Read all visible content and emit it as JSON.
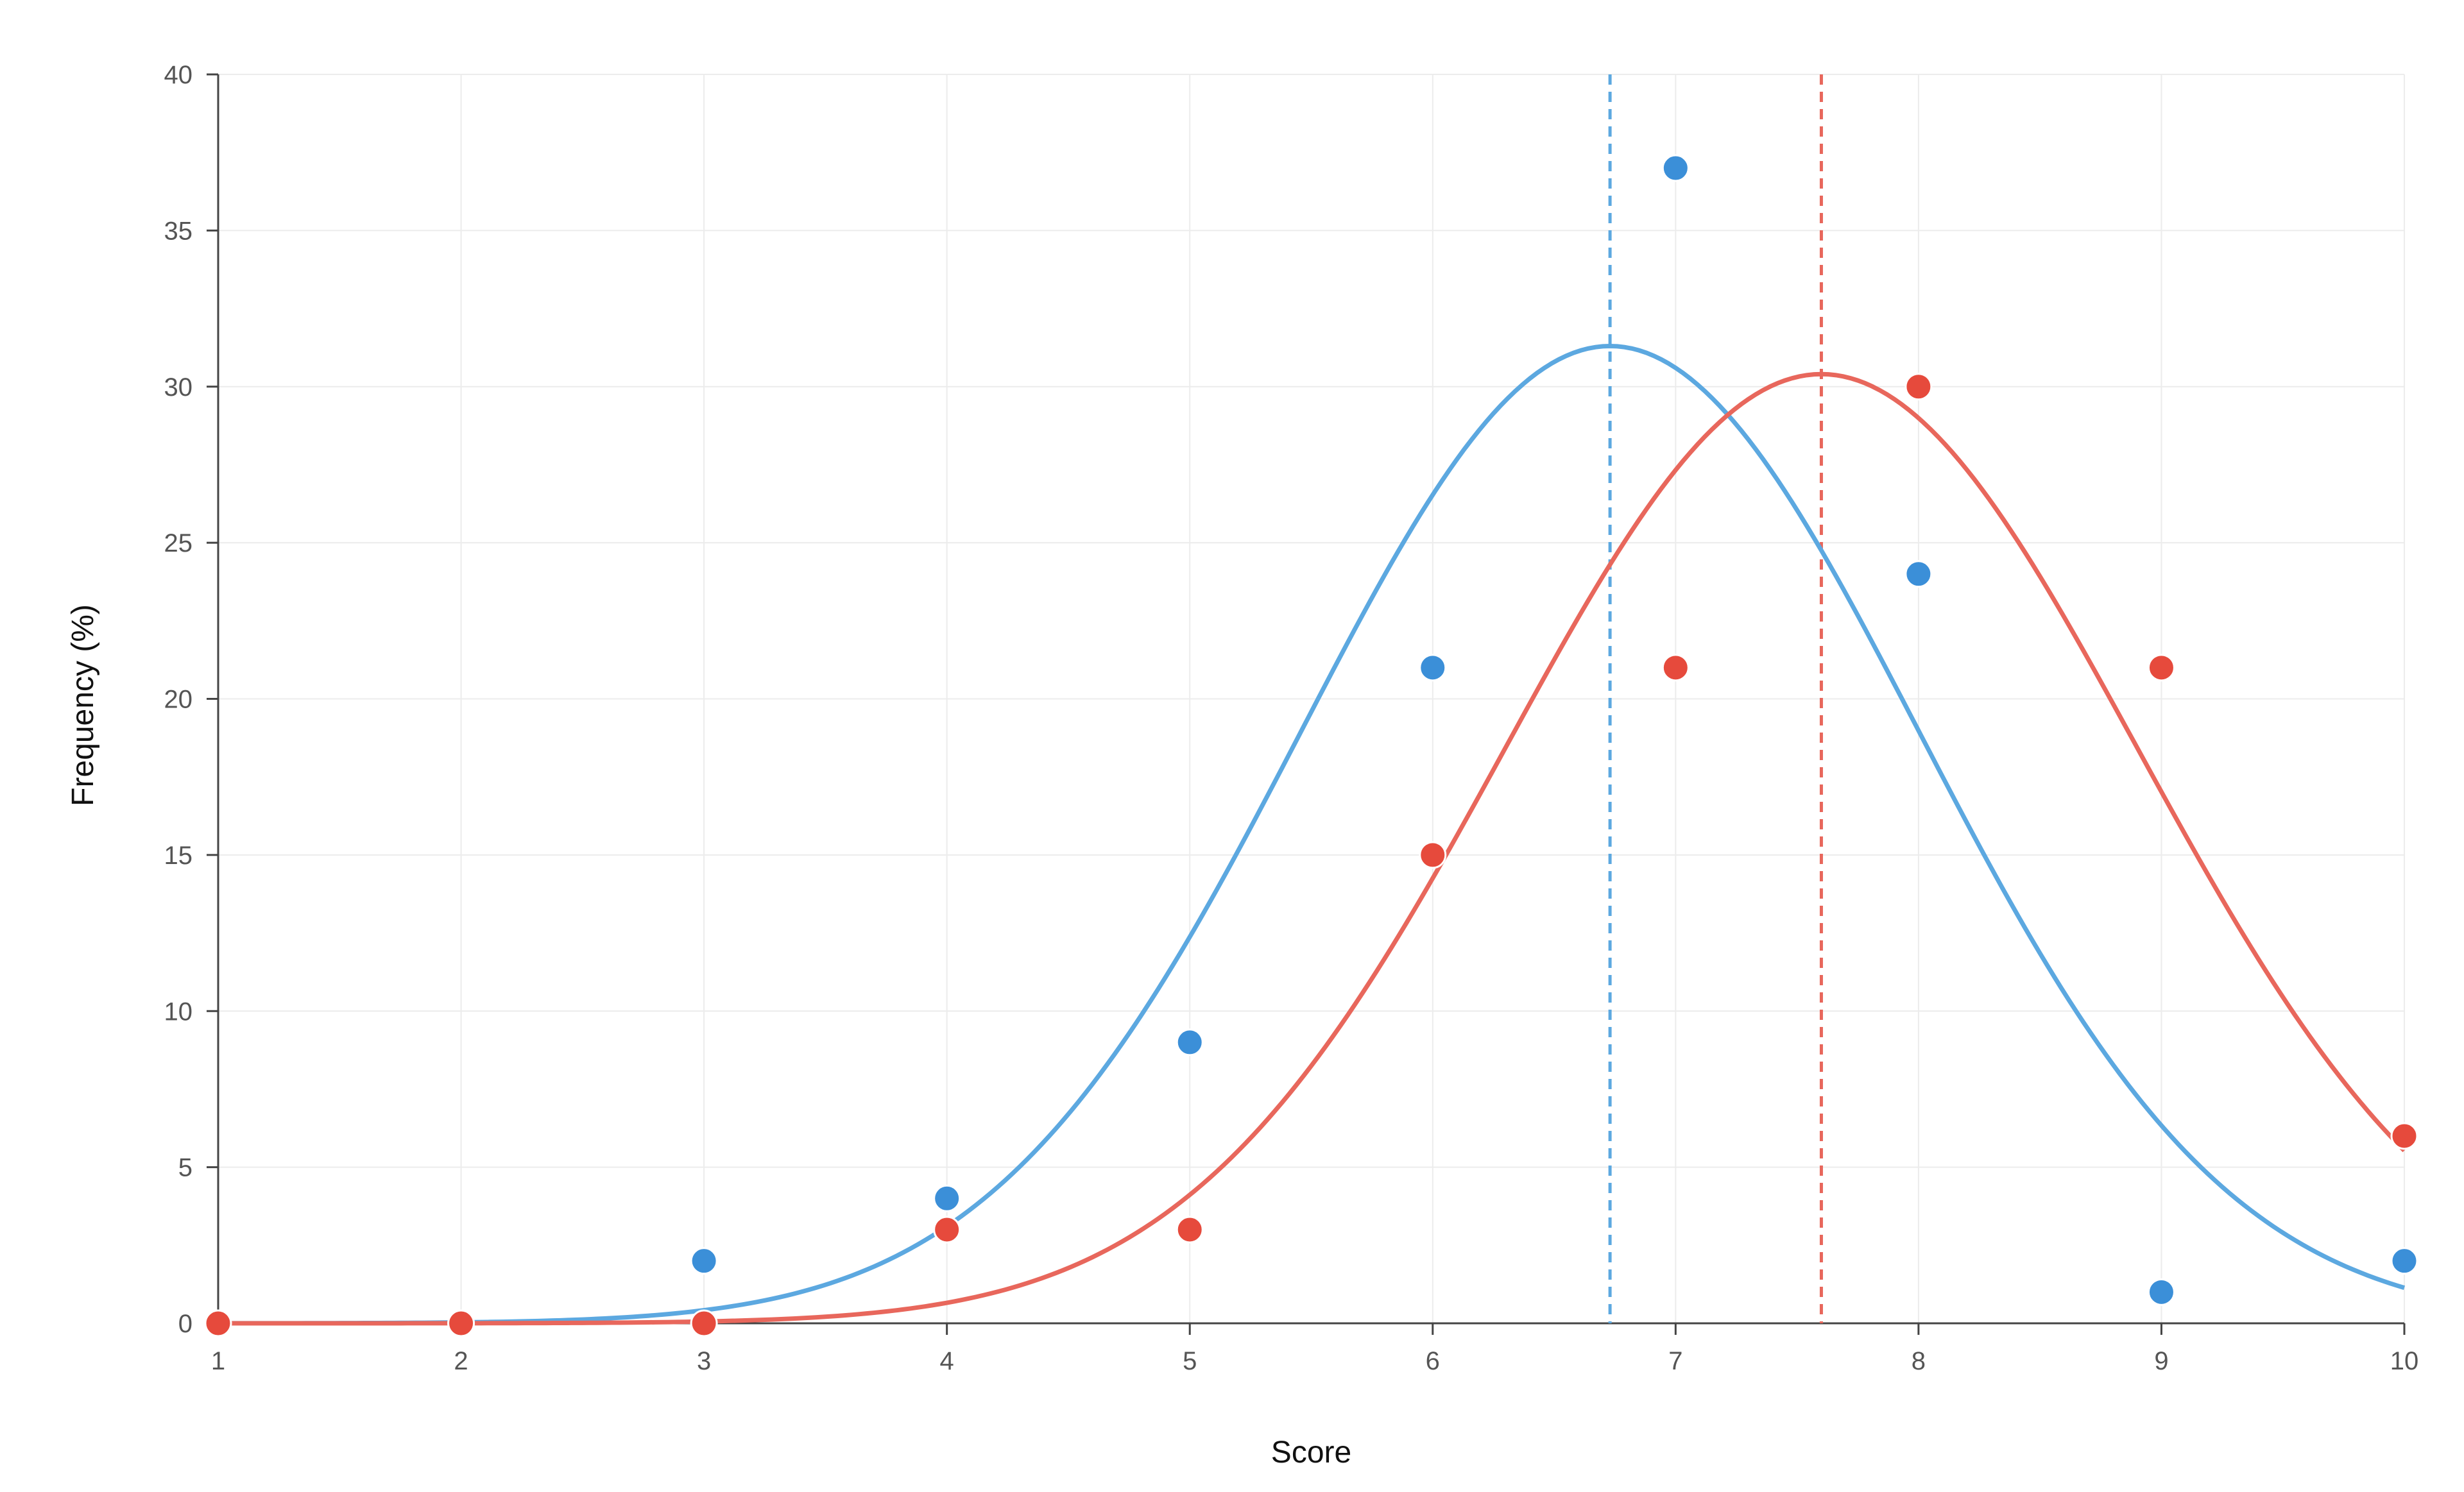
{
  "chart_data": {
    "type": "scatter",
    "title": "",
    "xlabel": "Score",
    "ylabel": "Frequency (%)",
    "xlim": [
      1,
      10
    ],
    "ylim": [
      0,
      40
    ],
    "xticks": [
      1,
      2,
      3,
      4,
      5,
      6,
      7,
      8,
      9,
      10
    ],
    "yticks": [
      0,
      5,
      10,
      15,
      20,
      25,
      30,
      35,
      40
    ],
    "grid": true,
    "legend": "none",
    "series": [
      {
        "color": "#3b8fd8",
        "curve_color": "#5ca8e0",
        "points": [
          {
            "x": 1,
            "y": 0
          },
          {
            "x": 2,
            "y": 0
          },
          {
            "x": 3,
            "y": 2
          },
          {
            "x": 4,
            "y": 4
          },
          {
            "x": 5,
            "y": 9
          },
          {
            "x": 6,
            "y": 21
          },
          {
            "x": 7,
            "y": 37
          },
          {
            "x": 8,
            "y": 24
          },
          {
            "x": 9,
            "y": 1
          },
          {
            "x": 10,
            "y": 2
          }
        ],
        "fit": {
          "mean": 6.73,
          "sd": 1.27,
          "peak": 31.3
        },
        "mean_line": 6.73
      },
      {
        "color": "#e64a3c",
        "curve_color": "#e8675c",
        "points": [
          {
            "x": 1,
            "y": 0
          },
          {
            "x": 2,
            "y": 0
          },
          {
            "x": 3,
            "y": 0
          },
          {
            "x": 4,
            "y": 3
          },
          {
            "x": 5,
            "y": 3
          },
          {
            "x": 6,
            "y": 15
          },
          {
            "x": 7,
            "y": 21
          },
          {
            "x": 8,
            "y": 30
          },
          {
            "x": 9,
            "y": 21
          },
          {
            "x": 10,
            "y": 6
          }
        ],
        "fit": {
          "mean": 7.6,
          "sd": 1.3,
          "peak": 30.4
        },
        "mean_line": 7.6
      }
    ]
  }
}
